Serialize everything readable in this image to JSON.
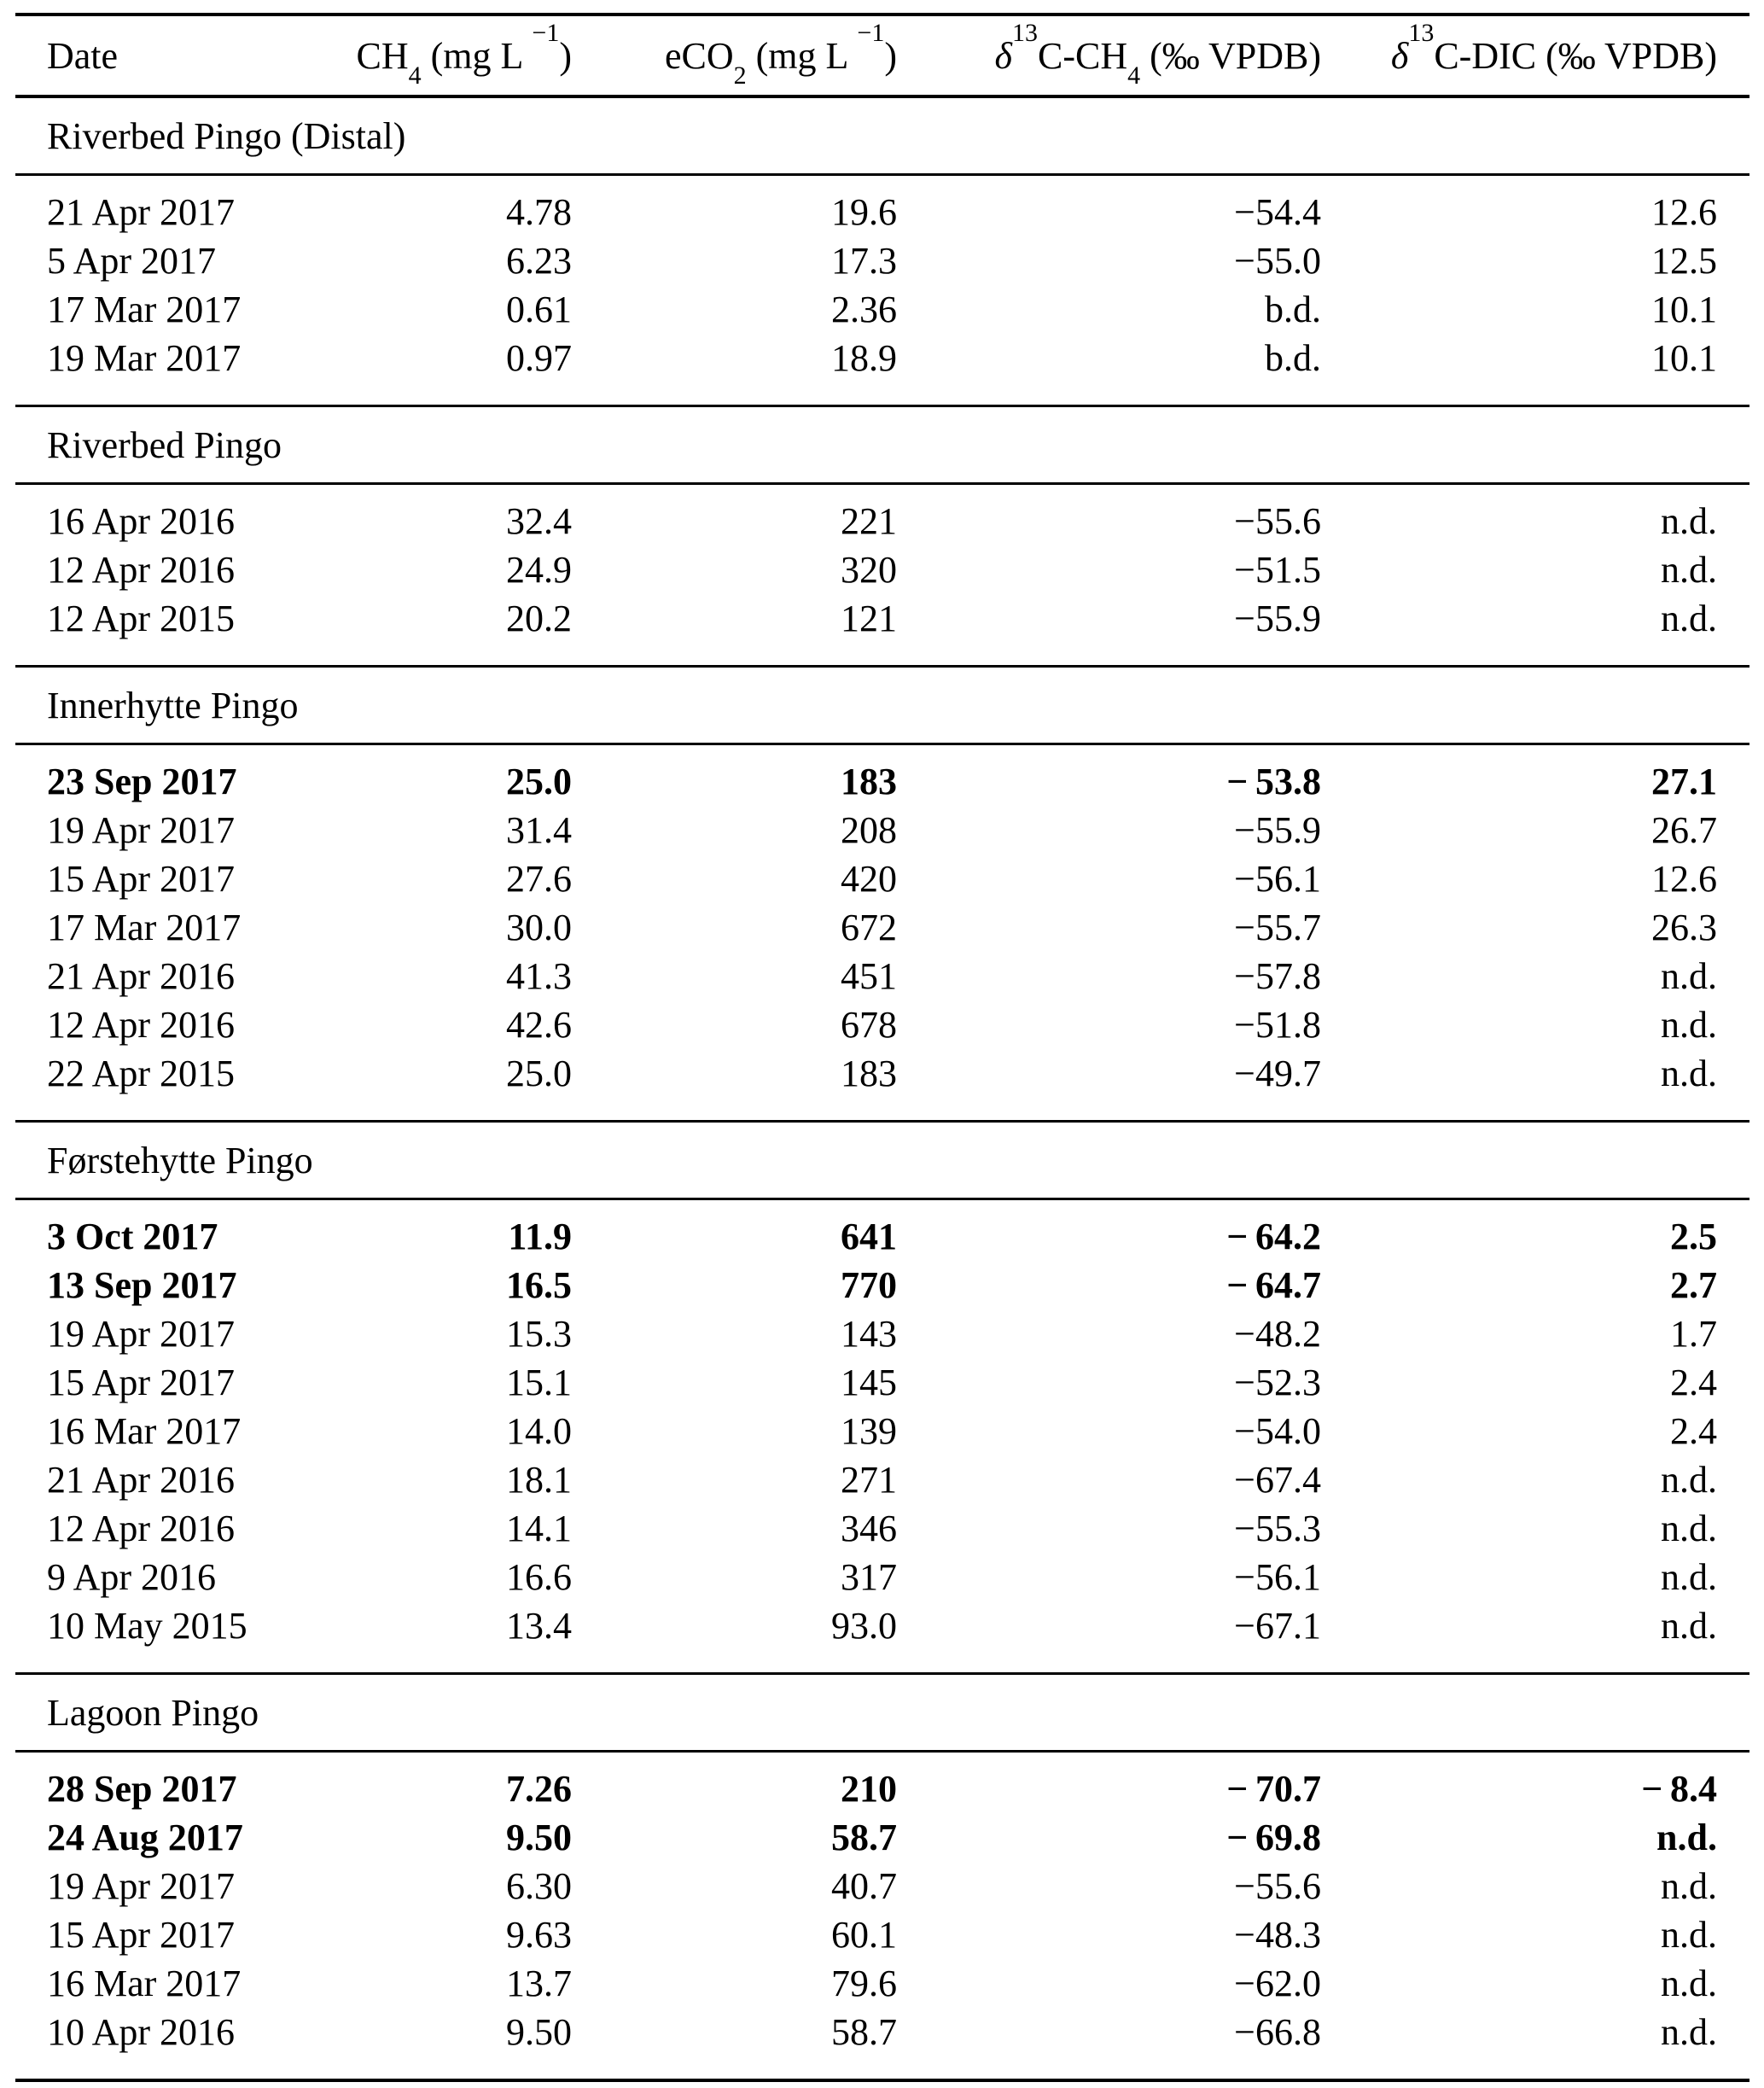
{
  "header": {
    "date": "Date",
    "ch4": {
      "base": "CH",
      "sub": "4",
      "unit_pre": " (mg L",
      "sup": "−1",
      "unit_post": ")"
    },
    "eco2": {
      "base": "eCO",
      "sub": "2",
      "unit_pre": " (mg L",
      "sup": "−1",
      "unit_post": ")"
    },
    "d13c_ch4": {
      "delta": "δ",
      "iso": "13",
      "base": "C-CH",
      "sub": "4",
      "unit": " (‰ VPDB)"
    },
    "d13c_dic": {
      "delta": "δ",
      "iso": "13",
      "base": "C-DIC",
      "unit": " (‰ VPDB)"
    }
  },
  "sections": [
    {
      "title": "Riverbed Pingo (Distal)",
      "rows": [
        {
          "date": "21 Apr 2017",
          "ch4": "4.78",
          "eco2": "19.6",
          "d13c_ch4": "−54.4",
          "d13c_dic": "12.6",
          "bold": false
        },
        {
          "date": "5 Apr 2017",
          "ch4": "6.23",
          "eco2": "17.3",
          "d13c_ch4": "−55.0",
          "d13c_dic": "12.5",
          "bold": false
        },
        {
          "date": "17 Mar 2017",
          "ch4": "0.61",
          "eco2": "2.36",
          "d13c_ch4": "b.d.",
          "d13c_dic": "10.1",
          "bold": false
        },
        {
          "date": "19 Mar 2017",
          "ch4": "0.97",
          "eco2": "18.9",
          "d13c_ch4": "b.d.",
          "d13c_dic": "10.1",
          "bold": false
        }
      ]
    },
    {
      "title": "Riverbed Pingo",
      "rows": [
        {
          "date": "16 Apr 2016",
          "ch4": "32.4",
          "eco2": "221",
          "d13c_ch4": "−55.6",
          "d13c_dic": "n.d.",
          "bold": false
        },
        {
          "date": "12 Apr 2016",
          "ch4": "24.9",
          "eco2": "320",
          "d13c_ch4": "−51.5",
          "d13c_dic": "n.d.",
          "bold": false
        },
        {
          "date": "12 Apr 2015",
          "ch4": "20.2",
          "eco2": "121",
          "d13c_ch4": "−55.9",
          "d13c_dic": "n.d.",
          "bold": false
        }
      ]
    },
    {
      "title": "Innerhytte Pingo",
      "rows": [
        {
          "date": "23 Sep 2017",
          "ch4": "25.0",
          "eco2": "183",
          "d13c_ch4": "− 53.8",
          "d13c_dic": "27.1",
          "bold": true
        },
        {
          "date": "19 Apr 2017",
          "ch4": "31.4",
          "eco2": "208",
          "d13c_ch4": "−55.9",
          "d13c_dic": "26.7",
          "bold": false
        },
        {
          "date": "15 Apr 2017",
          "ch4": "27.6",
          "eco2": "420",
          "d13c_ch4": "−56.1",
          "d13c_dic": "12.6",
          "bold": false
        },
        {
          "date": "17 Mar 2017",
          "ch4": "30.0",
          "eco2": "672",
          "d13c_ch4": "−55.7",
          "d13c_dic": "26.3",
          "bold": false
        },
        {
          "date": "21 Apr 2016",
          "ch4": "41.3",
          "eco2": "451",
          "d13c_ch4": "−57.8",
          "d13c_dic": "n.d.",
          "bold": false
        },
        {
          "date": "12 Apr 2016",
          "ch4": "42.6",
          "eco2": "678",
          "d13c_ch4": "−51.8",
          "d13c_dic": "n.d.",
          "bold": false
        },
        {
          "date": "22 Apr 2015",
          "ch4": "25.0",
          "eco2": "183",
          "d13c_ch4": "−49.7",
          "d13c_dic": "n.d.",
          "bold": false
        }
      ]
    },
    {
      "title": "Førstehytte Pingo",
      "rows": [
        {
          "date": "3 Oct 2017",
          "ch4": "11.9",
          "eco2": "641",
          "d13c_ch4": "− 64.2",
          "d13c_dic": "2.5",
          "bold": true
        },
        {
          "date": "13 Sep 2017",
          "ch4": "16.5",
          "eco2": "770",
          "d13c_ch4": "− 64.7",
          "d13c_dic": "2.7",
          "bold": true
        },
        {
          "date": "19 Apr 2017",
          "ch4": "15.3",
          "eco2": "143",
          "d13c_ch4": "−48.2",
          "d13c_dic": "1.7",
          "bold": false
        },
        {
          "date": "15 Apr 2017",
          "ch4": "15.1",
          "eco2": "145",
          "d13c_ch4": "−52.3",
          "d13c_dic": "2.4",
          "bold": false
        },
        {
          "date": "16 Mar 2017",
          "ch4": "14.0",
          "eco2": "139",
          "d13c_ch4": "−54.0",
          "d13c_dic": "2.4",
          "bold": false
        },
        {
          "date": "21 Apr 2016",
          "ch4": "18.1",
          "eco2": "271",
          "d13c_ch4": "−67.4",
          "d13c_dic": "n.d.",
          "bold": false
        },
        {
          "date": "12 Apr 2016",
          "ch4": "14.1",
          "eco2": "346",
          "d13c_ch4": "−55.3",
          "d13c_dic": "n.d.",
          "bold": false
        },
        {
          "date": "9 Apr 2016",
          "ch4": "16.6",
          "eco2": "317",
          "d13c_ch4": "−56.1",
          "d13c_dic": "n.d.",
          "bold": false
        },
        {
          "date": "10 May 2015",
          "ch4": "13.4",
          "eco2": "93.0",
          "d13c_ch4": "−67.1",
          "d13c_dic": "n.d.",
          "bold": false
        }
      ]
    },
    {
      "title": "Lagoon Pingo",
      "rows": [
        {
          "date": "28 Sep 2017",
          "ch4": "7.26",
          "eco2": "210",
          "d13c_ch4": "− 70.7",
          "d13c_dic": "− 8.4",
          "bold": true
        },
        {
          "date": "24 Aug 2017",
          "ch4": "9.50",
          "eco2": "58.7",
          "d13c_ch4": "− 69.8",
          "d13c_dic": "n.d.",
          "bold": true
        },
        {
          "date": "19 Apr 2017",
          "ch4": "6.30",
          "eco2": "40.7",
          "d13c_ch4": "−55.6",
          "d13c_dic": "n.d.",
          "bold": false
        },
        {
          "date": "15 Apr 2017",
          "ch4": "9.63",
          "eco2": "60.1",
          "d13c_ch4": "−48.3",
          "d13c_dic": "n.d.",
          "bold": false
        },
        {
          "date": "16 Mar 2017",
          "ch4": "13.7",
          "eco2": "79.6",
          "d13c_ch4": "−62.0",
          "d13c_dic": "n.d.",
          "bold": false
        },
        {
          "date": "10 Apr 2016",
          "ch4": "9.50",
          "eco2": "58.7",
          "d13c_ch4": "−66.8",
          "d13c_dic": "n.d.",
          "bold": false
        }
      ]
    }
  ]
}
